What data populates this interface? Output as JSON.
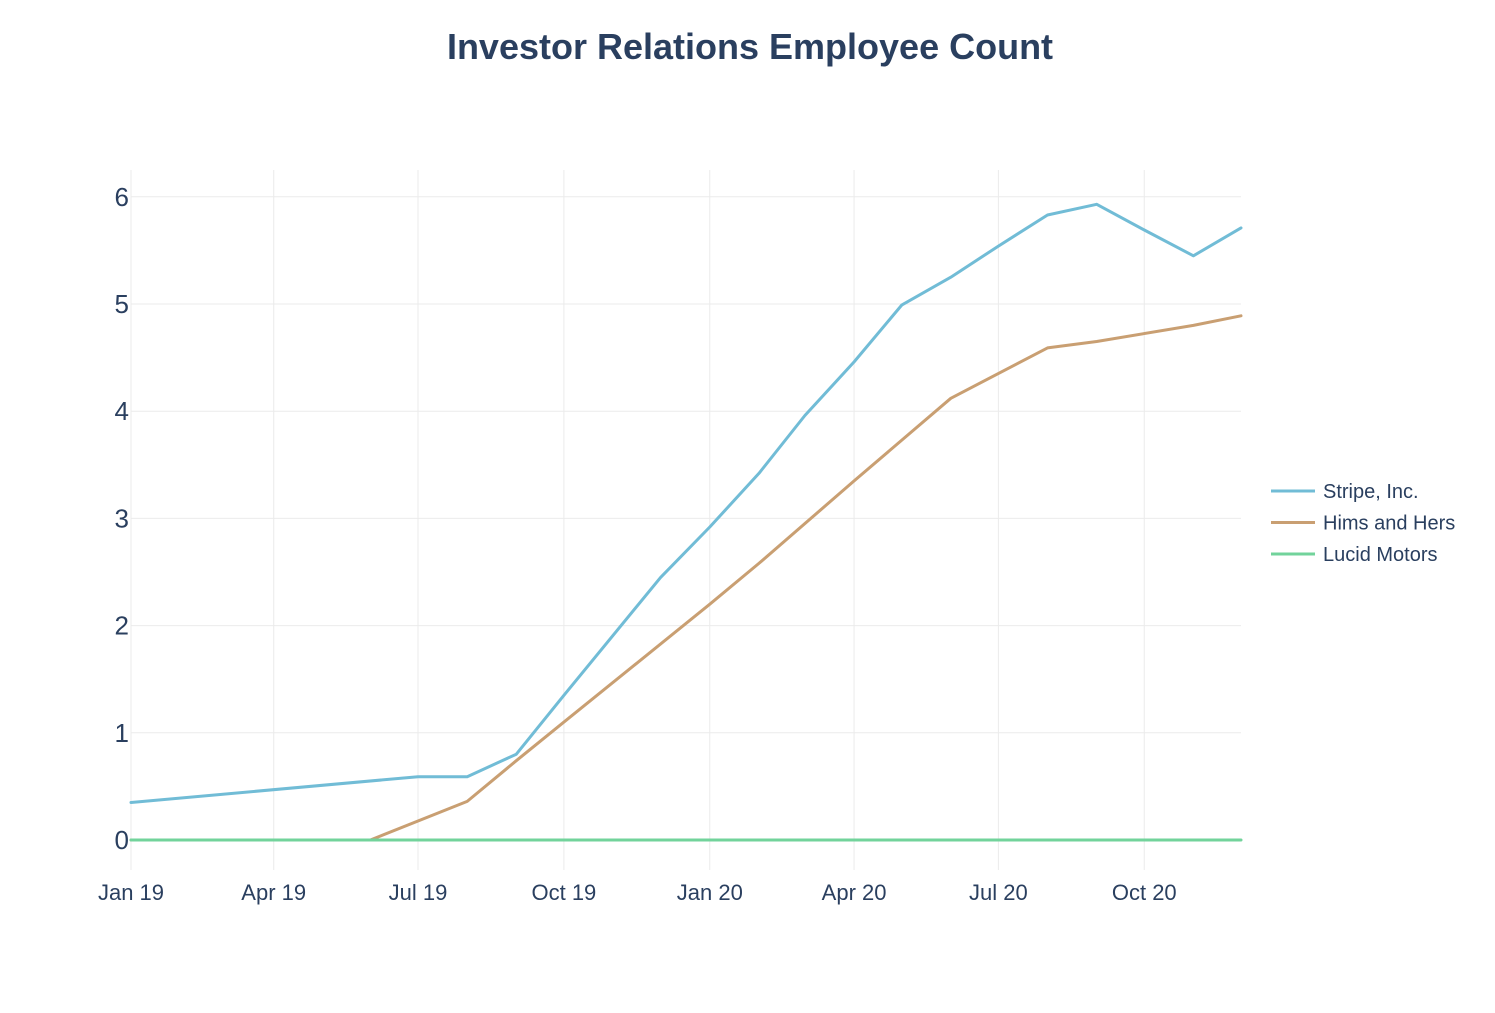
{
  "chart_data": {
    "type": "line",
    "title": "Investor Relations Employee Count",
    "xlabel": "",
    "ylabel": "",
    "x_ticks": [
      {
        "date": "2019-01-01",
        "label": "Jan 19"
      },
      {
        "date": "2019-04-01",
        "label": "Apr 19"
      },
      {
        "date": "2019-07-01",
        "label": "Jul 19"
      },
      {
        "date": "2019-10-01",
        "label": "Oct 19"
      },
      {
        "date": "2020-01-01",
        "label": "Jan 20"
      },
      {
        "date": "2020-04-01",
        "label": "Apr 20"
      },
      {
        "date": "2020-07-01",
        "label": "Jul 20"
      },
      {
        "date": "2020-10-01",
        "label": "Oct 20"
      }
    ],
    "xlim": [
      "2019-01-01",
      "2020-12-01"
    ],
    "y_ticks": [
      0,
      1,
      2,
      3,
      4,
      5,
      6
    ],
    "ylim": [
      -0.28,
      6.25
    ],
    "grid": true,
    "legend_position": "right",
    "series": [
      {
        "name": "Stripe, Inc.",
        "color": "#71bcd6",
        "points": [
          {
            "x": "2019-01-01",
            "y": 0.35
          },
          {
            "x": "2019-07-01",
            "y": 0.59
          },
          {
            "x": "2019-08-01",
            "y": 0.59
          },
          {
            "x": "2019-09-01",
            "y": 0.8
          },
          {
            "x": "2019-10-01",
            "y": 1.35
          },
          {
            "x": "2019-12-01",
            "y": 2.45
          },
          {
            "x": "2020-01-01",
            "y": 2.92
          },
          {
            "x": "2020-02-01",
            "y": 3.42
          },
          {
            "x": "2020-03-01",
            "y": 3.96
          },
          {
            "x": "2020-04-01",
            "y": 4.46
          },
          {
            "x": "2020-05-01",
            "y": 4.99
          },
          {
            "x": "2020-06-01",
            "y": 5.25
          },
          {
            "x": "2020-07-01",
            "y": 5.54
          },
          {
            "x": "2020-08-01",
            "y": 5.83
          },
          {
            "x": "2020-09-01",
            "y": 5.93
          },
          {
            "x": "2020-10-01",
            "y": 5.69
          },
          {
            "x": "2020-11-01",
            "y": 5.45
          },
          {
            "x": "2020-12-01",
            "y": 5.71
          }
        ]
      },
      {
        "name": "Hims and Hers",
        "color": "#c99f72",
        "points": [
          {
            "x": "2019-01-01",
            "y": 0
          },
          {
            "x": "2019-06-01",
            "y": 0
          },
          {
            "x": "2019-08-01",
            "y": 0.36
          },
          {
            "x": "2019-09-01",
            "y": 0.74
          },
          {
            "x": "2019-10-01",
            "y": 1.1
          },
          {
            "x": "2020-01-01",
            "y": 2.2
          },
          {
            "x": "2020-02-01",
            "y": 2.58
          },
          {
            "x": "2020-04-01",
            "y": 3.35
          },
          {
            "x": "2020-06-01",
            "y": 4.12
          },
          {
            "x": "2020-08-01",
            "y": 4.59
          },
          {
            "x": "2020-09-01",
            "y": 4.65
          },
          {
            "x": "2020-11-01",
            "y": 4.8
          },
          {
            "x": "2020-12-01",
            "y": 4.89
          }
        ]
      },
      {
        "name": "Lucid Motors",
        "color": "#72d39b",
        "points": [
          {
            "x": "2019-01-01",
            "y": 0
          },
          {
            "x": "2020-12-01",
            "y": 0
          }
        ]
      }
    ]
  }
}
